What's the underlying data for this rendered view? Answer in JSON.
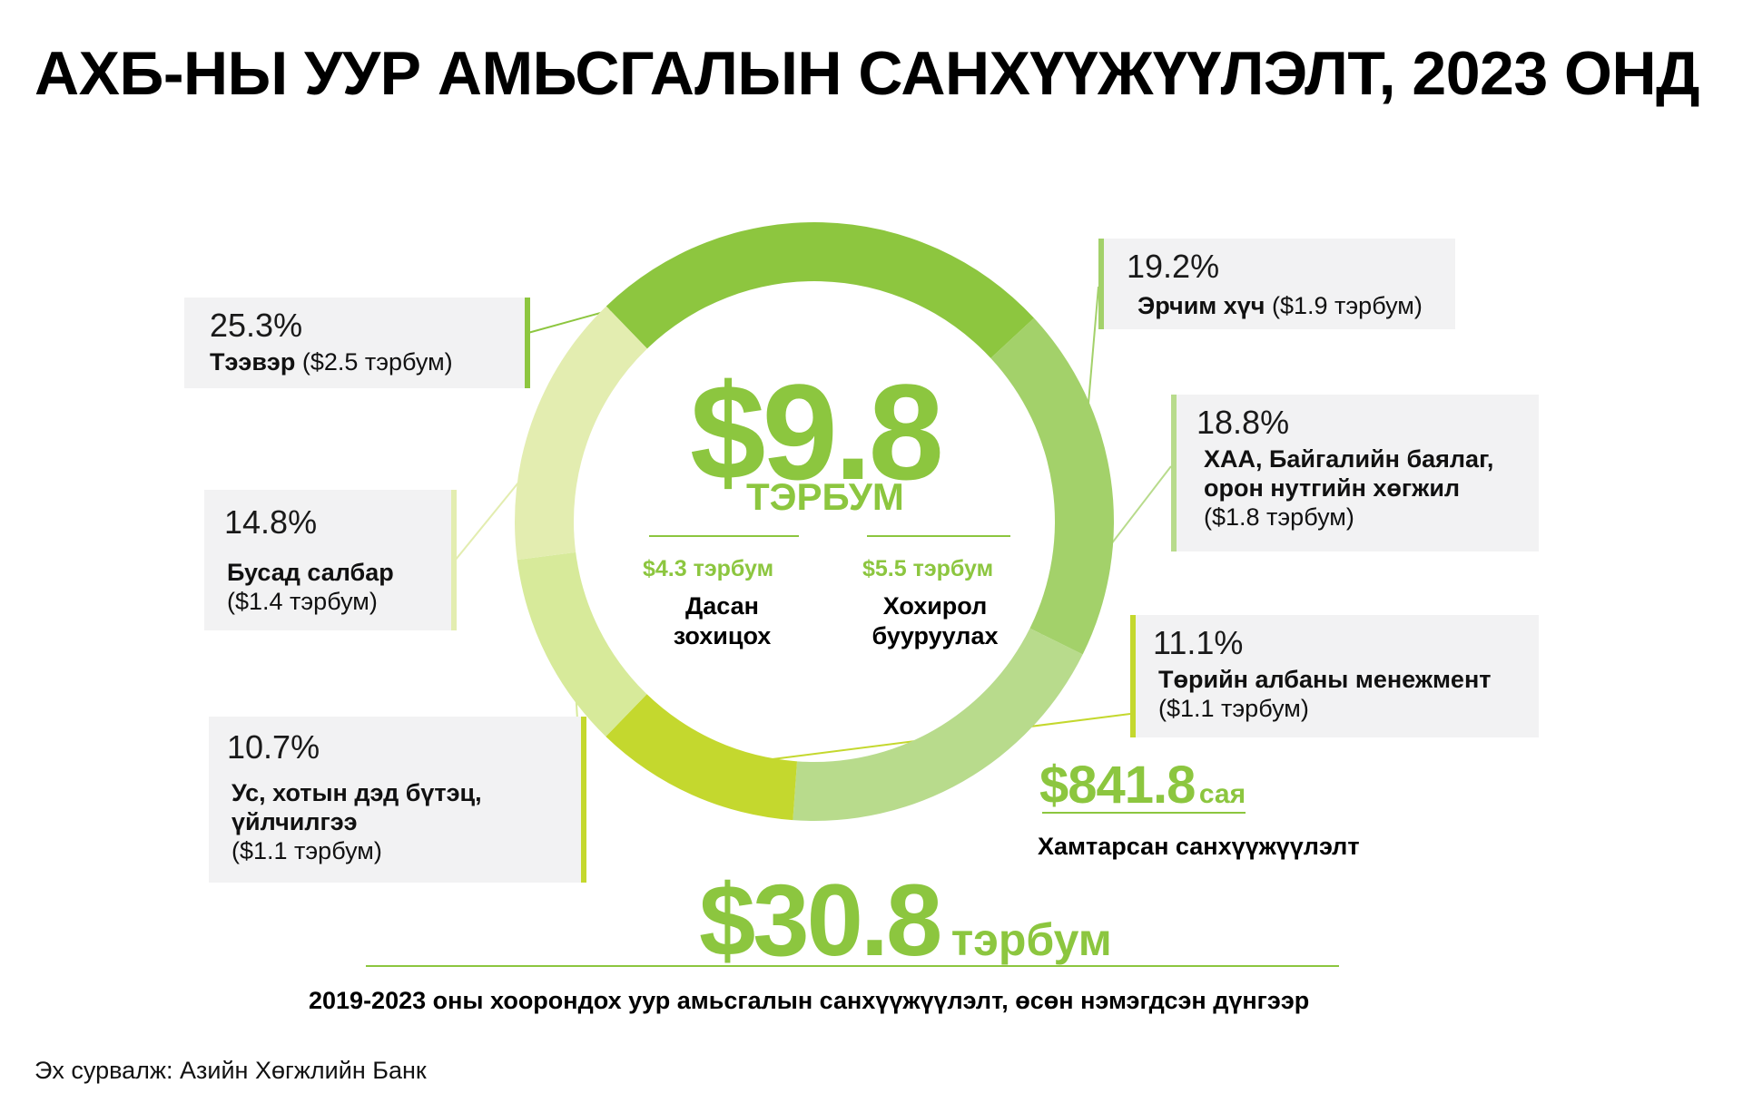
{
  "title": "АХБ-НЫ УУР АМЬСГАЛЫН САНХҮҮЖҮҮЛЭЛТ, 2023 ОНД",
  "center": {
    "total_value": "$9.8",
    "total_unit": "ТЭРБУМ",
    "adaptation_amount": "$4.3 тэрбум",
    "adaptation_label_1": "Дасан",
    "adaptation_label_2": "зохицох",
    "mitigation_amount": "$5.5 тэрбум",
    "mitigation_label_1": "Хохирол",
    "mitigation_label_2": "бууруулах"
  },
  "labels": {
    "transport": {
      "pct": "25.3%",
      "name": "Тээвэр",
      "amount": "($2.5 тэрбум)"
    },
    "energy": {
      "pct": "19.2%",
      "name": "Эрчим хүч",
      "amount": "($1.9 тэрбум)"
    },
    "agri": {
      "pct": "18.8%",
      "name_1": "ХАА, Байгалийн баялаг,",
      "name_2": "орон нутгийн хөгжил",
      "amount": "($1.8 тэрбум)"
    },
    "public": {
      "pct": "11.1%",
      "name": "Төрийн албаны менежмент",
      "amount": "($1.1 тэрбум)"
    },
    "water": {
      "pct": "10.7%",
      "name_1": "Ус, хотын дэд бүтэц,",
      "name_2": "үйлчилгээ",
      "amount": "($1.1 тэрбум)"
    },
    "other": {
      "pct": "14.8%",
      "name": "Бусад салбар",
      "amount": "($1.4 тэрбум)"
    }
  },
  "cofinancing": {
    "value": "$841.8",
    "unit": "сая",
    "label": "Хамтарсан санхүүжүүлэлт"
  },
  "cumulative": {
    "value": "$30.8",
    "unit": "тэрбум",
    "note": "2019-2023 оны хоорондох уур амьсгалын санхүүжүүлэлт, өсөн нэмэгдсэн дүнгээр"
  },
  "source": "Эх сурвалж: Азийн Хөгжлийн Банк",
  "chart_data": {
    "type": "pie",
    "categories": [
      "Тээвэр",
      "Эрчим хүч",
      "ХАА, Байгалийн баялаг, орон нутгийн хөгжил",
      "Төрийн албаны менежмент",
      "Ус, хотын дэд бүтэц, үйлчилгээ",
      "Бусад салбар"
    ],
    "values": [
      25.3,
      19.2,
      18.8,
      11.1,
      10.7,
      14.8
    ],
    "amounts_billion_usd": [
      2.5,
      1.9,
      1.8,
      1.1,
      1.1,
      1.4
    ],
    "colors": [
      "#8dc63f",
      "#a3d16a",
      "#b8db8c",
      "#c4d82e",
      "#d7ea9a",
      "#e3edb0"
    ],
    "title": "АХБ-НЫ УУР АМЬСГАЛЫН САНХҮҮЖҮҮЛЭЛТ, 2023 ОНД"
  }
}
